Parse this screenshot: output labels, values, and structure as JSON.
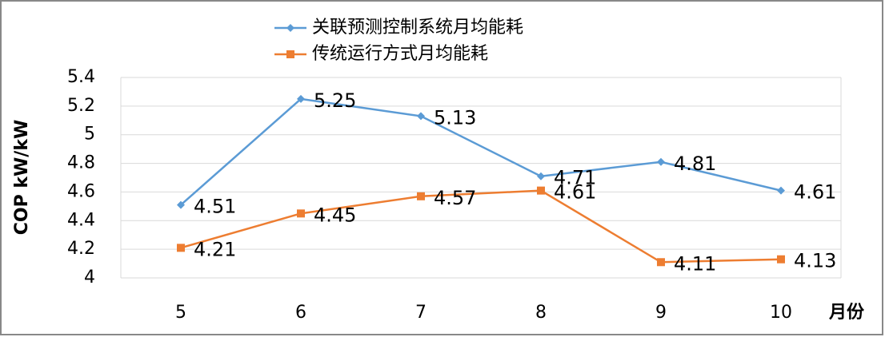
{
  "chart_data": {
    "type": "line",
    "y_label": "COP kW/kW",
    "x_label": "月份",
    "categories": [
      "5",
      "6",
      "7",
      "8",
      "9",
      "10"
    ],
    "series": [
      {
        "name": "关联预测控制系统月均能耗",
        "color": "#5b9bd5",
        "values": [
          4.51,
          5.25,
          5.13,
          4.71,
          4.81,
          4.61
        ]
      },
      {
        "name": "传统运行方式月均能耗",
        "color": "#ed7d31",
        "values": [
          4.21,
          4.45,
          4.57,
          4.61,
          4.11,
          4.13
        ]
      }
    ],
    "ylim": [
      4,
      5.4
    ],
    "yticks": [
      4,
      4.2,
      4.4,
      4.6,
      4.8,
      5,
      5.2,
      5.4
    ],
    "grid": true
  }
}
